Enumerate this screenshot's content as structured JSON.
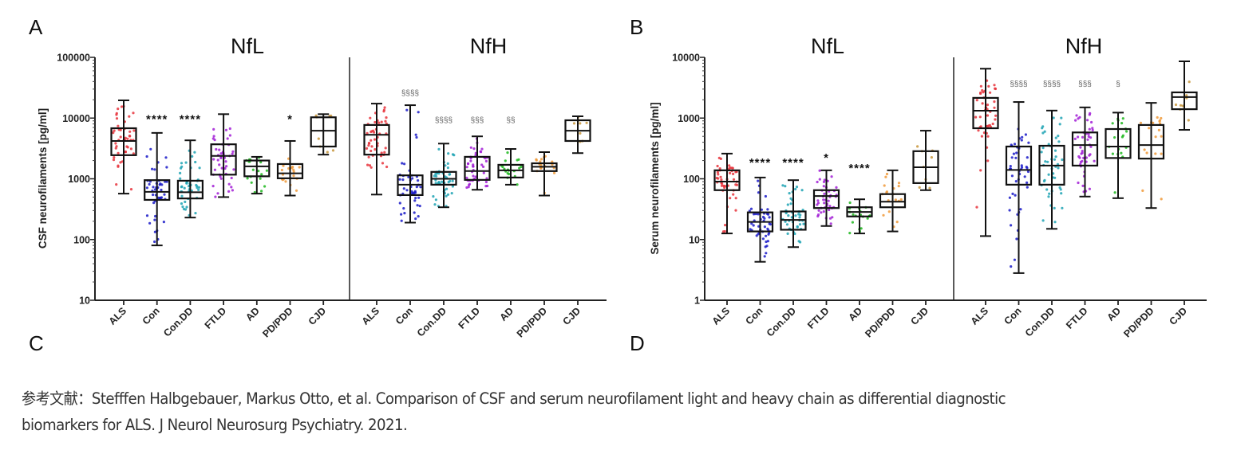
{
  "chart_data": [
    {
      "panel": "A",
      "type": "box",
      "ylabel": "CSF neurofilaments [pg/ml]",
      "yscale": "log",
      "ylim": [
        10,
        100000
      ],
      "yticks": [
        10,
        100,
        1000,
        10000,
        100000
      ],
      "ytick_labels": [
        "10",
        "100",
        "1000",
        "10000",
        "100000"
      ],
      "grid": false,
      "subplots": [
        {
          "title": "NfL",
          "categories": [
            "ALS",
            "Con",
            "Con.DD",
            "FTLD",
            "AD",
            "PD/PDD",
            "CJD"
          ],
          "series": [
            {
              "name": "ALS",
              "color": "#e8343c",
              "min": 570,
              "q1": 2450,
              "median": 4200,
              "q3": 6800,
              "max": 19600,
              "annotation": ""
            },
            {
              "name": "Con",
              "color": "#1a1ac8",
              "min": 80,
              "q1": 450,
              "median": 610,
              "q3": 950,
              "max": 5700,
              "annotation": "****"
            },
            {
              "name": "Con.DD",
              "color": "#1fa3b4",
              "min": 230,
              "q1": 475,
              "median": 600,
              "q3": 930,
              "max": 4300,
              "annotation": "****"
            },
            {
              "name": "FTLD",
              "color": "#a21fd6",
              "min": 500,
              "q1": 1170,
              "median": 2380,
              "q3": 3700,
              "max": 11600,
              "annotation": ""
            },
            {
              "name": "AD",
              "color": "#1fb81f",
              "min": 570,
              "q1": 1100,
              "median": 1600,
              "q3": 2000,
              "max": 2300,
              "annotation": ""
            },
            {
              "name": "PD/PDD",
              "color": "#f09a3a",
              "min": 530,
              "q1": 1020,
              "median": 1230,
              "q3": 1750,
              "max": 4200,
              "annotation": "*"
            },
            {
              "name": "CJD",
              "color": "#c8963c",
              "min": 2500,
              "q1": 3400,
              "median": 6200,
              "q3": 10300,
              "max": 11600,
              "annotation": ""
            }
          ]
        },
        {
          "title": "NfH",
          "categories": [
            "ALS",
            "Con",
            "Con.DD",
            "FTLD",
            "AD",
            "PD/PDD",
            "CJD"
          ],
          "series": [
            {
              "name": "ALS",
              "color": "#e8343c",
              "min": 550,
              "q1": 2500,
              "median": 5300,
              "q3": 7700,
              "max": 17300,
              "annotation": ""
            },
            {
              "name": "Con",
              "color": "#1a1ac8",
              "min": 190,
              "q1": 540,
              "median": 800,
              "q3": 1140,
              "max": 16300,
              "annotation": "§§§§"
            },
            {
              "name": "Con.DD",
              "color": "#1fa3b4",
              "min": 340,
              "q1": 800,
              "median": 1000,
              "q3": 1300,
              "max": 3800,
              "annotation": "§§§§"
            },
            {
              "name": "FTLD",
              "color": "#a21fd6",
              "min": 660,
              "q1": 960,
              "median": 1340,
              "q3": 2300,
              "max": 5000,
              "annotation": "§§§"
            },
            {
              "name": "AD",
              "color": "#1fb81f",
              "min": 800,
              "q1": 1050,
              "median": 1380,
              "q3": 1700,
              "max": 3100,
              "annotation": "§§"
            },
            {
              "name": "PD/PDD",
              "color": "#f09a3a",
              "min": 530,
              "q1": 1340,
              "median": 1580,
              "q3": 1800,
              "max": 2750,
              "annotation": ""
            },
            {
              "name": "CJD",
              "color": "#c8963c",
              "min": 2650,
              "q1": 4200,
              "median": 6200,
              "q3": 9200,
              "max": 10700,
              "annotation": ""
            }
          ]
        }
      ]
    },
    {
      "panel": "B",
      "type": "box",
      "ylabel": "Serum neurofilaments [pg/ml]",
      "yscale": "log",
      "ylim": [
        1,
        10000
      ],
      "yticks": [
        1,
        10,
        100,
        1000,
        10000
      ],
      "ytick_labels": [
        "1",
        "10",
        "100",
        "1000",
        "10000"
      ],
      "grid": false,
      "subplots": [
        {
          "title": "NfL",
          "categories": [
            "ALS",
            "Con",
            "Con.DD",
            "FTLD",
            "AD",
            "PD/PDD",
            "CJD"
          ],
          "series": [
            {
              "name": "ALS",
              "color": "#e8343c",
              "min": 12.6,
              "q1": 65,
              "median": 90,
              "q3": 138,
              "max": 260,
              "annotation": ""
            },
            {
              "name": "Con",
              "color": "#1a1ac8",
              "min": 4.3,
              "q1": 13.6,
              "median": 19.5,
              "q3": 28,
              "max": 105,
              "annotation": "****"
            },
            {
              "name": "Con.DD",
              "color": "#1fa3b4",
              "min": 7.5,
              "q1": 14.5,
              "median": 21,
              "q3": 29,
              "max": 95,
              "annotation": "****"
            },
            {
              "name": "FTLD",
              "color": "#a21fd6",
              "min": 16.7,
              "q1": 33,
              "median": 52,
              "q3": 65,
              "max": 138,
              "annotation": "*"
            },
            {
              "name": "AD",
              "color": "#1fb81f",
              "min": 12.6,
              "q1": 24,
              "median": 28.5,
              "q3": 34,
              "max": 46,
              "annotation": "****"
            },
            {
              "name": "PD/PDD",
              "color": "#f09a3a",
              "min": 13.6,
              "q1": 34,
              "median": 42,
              "q3": 56,
              "max": 138,
              "annotation": ""
            },
            {
              "name": "CJD",
              "color": "#c8963c",
              "min": 65,
              "q1": 85,
              "median": 155,
              "q3": 285,
              "max": 620,
              "annotation": ""
            }
          ]
        },
        {
          "title": "NfH",
          "categories": [
            "ALS",
            "Con",
            "Con.DD",
            "FTLD",
            "AD",
            "PD/PDD",
            "CJD"
          ],
          "series": [
            {
              "name": "ALS",
              "color": "#e8343c",
              "min": 11.4,
              "q1": 680,
              "median": 1320,
              "q3": 2150,
              "max": 6500,
              "annotation": ""
            },
            {
              "name": "Con",
              "color": "#1a1ac8",
              "min": 2.8,
              "q1": 80,
              "median": 140,
              "q3": 340,
              "max": 1840,
              "annotation": "§§§§"
            },
            {
              "name": "Con.DD",
              "color": "#1fa3b4",
              "min": 15,
              "q1": 80,
              "median": 165,
              "q3": 350,
              "max": 1330,
              "annotation": "§§§§"
            },
            {
              "name": "FTLD",
              "color": "#a21fd6",
              "min": 51,
              "q1": 165,
              "median": 360,
              "q3": 580,
              "max": 1500,
              "annotation": "§§§"
            },
            {
              "name": "AD",
              "color": "#1fb81f",
              "min": 48,
              "q1": 220,
              "median": 340,
              "q3": 660,
              "max": 1230,
              "annotation": "§"
            },
            {
              "name": "PD/PDD",
              "color": "#f09a3a",
              "min": 33,
              "q1": 215,
              "median": 360,
              "q3": 770,
              "max": 1780,
              "annotation": ""
            },
            {
              "name": "CJD",
              "color": "#c8963c",
              "min": 640,
              "q1": 1400,
              "median": 2220,
              "q3": 2650,
              "max": 8600,
              "annotation": ""
            }
          ]
        }
      ]
    }
  ],
  "panel_labels": {
    "a": "A",
    "b": "B",
    "c": "C",
    "d": "D"
  },
  "caption": {
    "line1": "参考文献：Stefffen Halbgebauer, Markus Otto, et al. Comparison of CSF and serum neurofilament light and heavy chain as differential diagnostic",
    "line2": "biomarkers for ALS. J Neurol Neurosurg Psychiatry. 2021."
  }
}
